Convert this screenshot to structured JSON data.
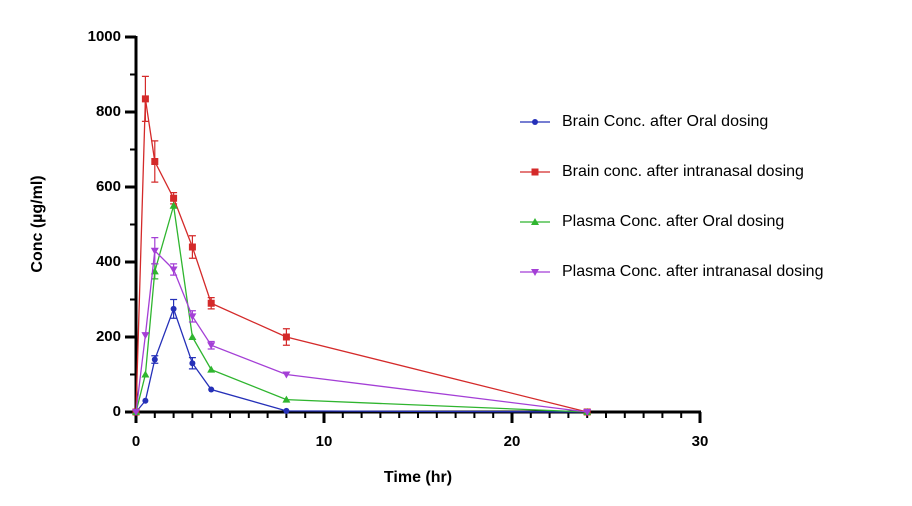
{
  "chart_data": {
    "type": "line",
    "xlabel": "Time (hr)",
    "ylabel": "Conc (µg/ml)",
    "x": [
      0,
      0.5,
      1,
      2,
      3,
      4,
      8,
      24
    ],
    "xlim": [
      0,
      30
    ],
    "xticks": [
      0,
      10,
      20,
      30
    ],
    "ylim": [
      0,
      1000
    ],
    "yticks": [
      0,
      200,
      400,
      600,
      800,
      1000
    ],
    "legend": "right",
    "series": [
      {
        "name": "Brain Conc. after Oral dosing",
        "color": "#2530b8",
        "marker": "circle",
        "values": [
          0,
          30,
          140,
          275,
          130,
          60,
          3,
          0
        ],
        "errors": [
          null,
          null,
          10,
          25,
          15,
          null,
          null,
          null
        ]
      },
      {
        "name": "Brain conc. after intranasal dosing",
        "color": "#d42a2a",
        "marker": "square",
        "values": [
          0,
          835,
          668,
          570,
          440,
          290,
          200,
          0
        ],
        "errors": [
          null,
          60,
          55,
          15,
          30,
          15,
          22,
          null
        ]
      },
      {
        "name": "Plasma Conc. after Oral dosing",
        "color": "#2fb52f",
        "marker": "triangle-up",
        "values": [
          0,
          100,
          375,
          550,
          200,
          113,
          33,
          0
        ],
        "errors": [
          null,
          null,
          20,
          null,
          null,
          null,
          null,
          null
        ]
      },
      {
        "name": "Plasma Conc. after intranasal dosing",
        "color": "#a43fd6",
        "marker": "triangle-down",
        "values": [
          0,
          205,
          430,
          380,
          255,
          178,
          100,
          0
        ],
        "errors": [
          null,
          null,
          35,
          15,
          15,
          10,
          null,
          null
        ]
      }
    ]
  }
}
